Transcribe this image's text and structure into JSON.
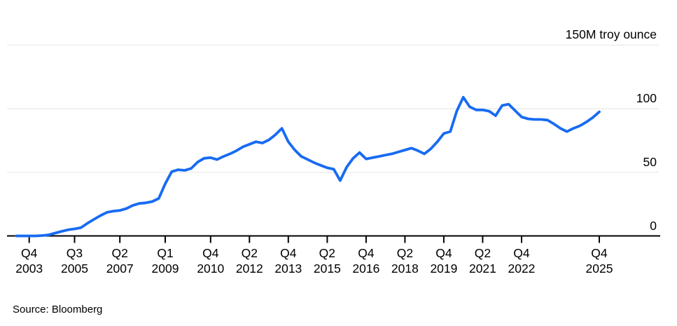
{
  "footer": {
    "source": "Source: Bloomberg"
  },
  "chart_data": {
    "type": "line",
    "title": "",
    "unit_label": "150M troy ounce",
    "xlabel": "",
    "ylabel": "M troy ounce",
    "ylim": [
      0,
      150
    ],
    "grid": "horizontal-only",
    "legend": "none",
    "line_color": "#176BF2",
    "axis_color": "#000000",
    "grid_color": "#E8E8E8",
    "text_color": "#000000",
    "x": [
      "Q2 2003",
      "Q3 2003",
      "Q4 2003",
      "Q1 2004",
      "Q2 2004",
      "Q3 2004",
      "Q4 2004",
      "Q1 2005",
      "Q2 2005",
      "Q3 2005",
      "Q4 2005",
      "Q1 2006",
      "Q2 2006",
      "Q3 2006",
      "Q4 2006",
      "Q1 2007",
      "Q2 2007",
      "Q3 2007",
      "Q4 2007",
      "Q1 2008",
      "Q2 2008",
      "Q3 2008",
      "Q4 2008",
      "Q1 2009",
      "Q2 2009",
      "Q3 2009",
      "Q4 2009",
      "Q1 2010",
      "Q2 2010",
      "Q3 2010",
      "Q4 2010",
      "Q1 2011",
      "Q2 2011",
      "Q3 2011",
      "Q4 2011",
      "Q1 2012",
      "Q2 2012",
      "Q3 2012",
      "Q4 2012",
      "Q1 2013",
      "Q2 2013",
      "Q3 2013",
      "Q4 2013",
      "Q1 2014",
      "Q2 2014",
      "Q3 2014",
      "Q4 2014",
      "Q1 2015",
      "Q2 2015",
      "Q3 2015",
      "Q4 2015",
      "Q1 2016",
      "Q2 2016",
      "Q3 2016",
      "Q4 2016",
      "Q1 2017",
      "Q2 2017",
      "Q3 2017",
      "Q4 2017",
      "Q1 2018",
      "Q2 2018",
      "Q3 2018",
      "Q4 2018",
      "Q1 2019",
      "Q2 2019",
      "Q3 2019",
      "Q4 2019",
      "Q1 2020",
      "Q2 2020",
      "Q3 2020",
      "Q4 2020",
      "Q1 2021",
      "Q2 2021",
      "Q3 2021",
      "Q4 2021",
      "Q1 2022",
      "Q2 2022",
      "Q3 2022",
      "Q4 2022",
      "Q1 2023",
      "Q2 2023",
      "Q3 2023",
      "Q4 2023",
      "Q1 2024",
      "Q2 2024",
      "Q3 2024",
      "Q4 2024",
      "Q1 2025",
      "Q2 2025",
      "Q3 2025",
      "Q4 2025"
    ],
    "values": [
      0,
      0,
      0,
      0,
      0.3,
      0.8,
      2.2,
      3.6,
      4.8,
      5.5,
      6.5,
      10,
      13,
      16,
      18.5,
      19.5,
      20,
      21.5,
      24,
      25.5,
      26,
      27,
      29.5,
      41,
      50.5,
      52,
      51.5,
      53,
      58,
      61,
      61.5,
      60,
      62.5,
      64.5,
      67,
      70,
      72,
      74,
      73,
      75.5,
      79.5,
      84.5,
      74,
      67.5,
      62.5,
      60,
      57.5,
      55.5,
      53.5,
      52.5,
      43.5,
      54,
      61,
      65.5,
      60.5,
      61.5,
      62.5,
      63.5,
      64.5,
      66,
      67.5,
      69,
      67,
      64.5,
      68.5,
      74,
      80.5,
      82,
      98,
      109,
      101.5,
      99,
      99,
      98,
      94.5,
      102.5,
      103.5,
      98.5,
      93.5,
      92,
      91.5,
      91.5,
      91,
      88,
      84.5,
      82,
      84.5,
      86.5,
      89.5,
      93,
      97.5
    ],
    "yticks": [
      {
        "v": 0,
        "label": "0"
      },
      {
        "v": 50,
        "label": "50"
      },
      {
        "v": 100,
        "label": "100"
      },
      {
        "v": 150,
        "label": "150M troy ounce"
      }
    ],
    "xtick_labels": [
      {
        "q": "Q4",
        "year": "2003",
        "qi": 0
      },
      {
        "q": "Q3",
        "year": "2005",
        "qi": 7
      },
      {
        "q": "Q2",
        "year": "2007",
        "qi": 14
      },
      {
        "q": "Q1",
        "year": "2009",
        "qi": 21
      },
      {
        "q": "Q4",
        "year": "2010",
        "qi": 28
      },
      {
        "q": "Q2",
        "year": "2012",
        "qi": 34
      },
      {
        "q": "Q4",
        "year": "2013",
        "qi": 40
      },
      {
        "q": "Q2",
        "year": "2015",
        "qi": 46
      },
      {
        "q": "Q4",
        "year": "2016",
        "qi": 52
      },
      {
        "q": "Q2",
        "year": "2018",
        "qi": 58
      },
      {
        "q": "Q4",
        "year": "2019",
        "qi": 64
      },
      {
        "q": "Q2",
        "year": "2021",
        "qi": 70
      },
      {
        "q": "Q4",
        "year": "2022",
        "qi": 76
      },
      {
        "q": "Q4",
        "year": "2025",
        "qi": 88
      }
    ]
  }
}
